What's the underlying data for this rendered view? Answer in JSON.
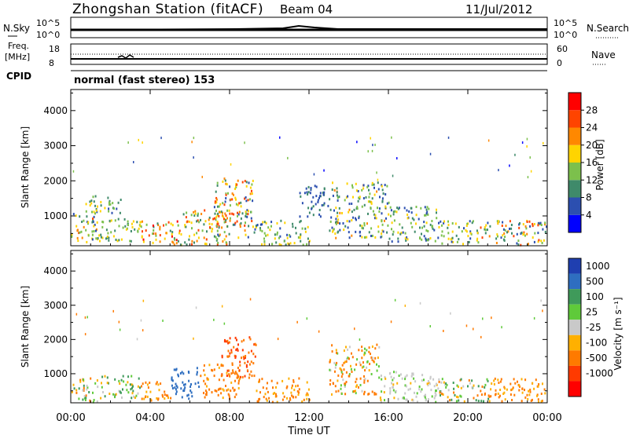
{
  "header": {
    "station": "Zhongshan Station (fitACF)",
    "beam": "Beam 04",
    "date": "11/Jul/2012"
  },
  "strip_labels": {
    "nsky": "N.Sky",
    "freq_line1": "Freq.",
    "freq_line2": "[MHz]",
    "cpid": "CPID",
    "nsearch": "N.Search",
    "nave": "Nave",
    "nsky_ticks": [
      "10^5",
      "10^0"
    ],
    "freq_ticks": [
      "18",
      "8"
    ],
    "nave_ticks": [
      "60",
      "0"
    ],
    "cpid_text": "normal (fast stereo) 153"
  },
  "chart_data": {
    "type": "heatmap",
    "x_ticks": [
      "00:00",
      "04:00",
      "08:00",
      "12:00",
      "16:00",
      "20:00",
      "00:00"
    ],
    "xlabel": "Time UT",
    "panels": [
      {
        "name": "power",
        "ylabel": "Slant Range [km]",
        "y_ticks": [
          1000,
          2000,
          3000,
          4000
        ],
        "ylim": [
          150,
          4600
        ],
        "colorbar_label": "Power [dB]",
        "colorbar_ticks": [
          "4",
          "8",
          "12",
          "16",
          "20",
          "24",
          "28"
        ],
        "colorbar_colors": [
          "#0000ff",
          "#2c4fb0",
          "#3f8a6a",
          "#7cc04c",
          "#ffd400",
          "#ff8800",
          "#ff4400",
          "#ff0000"
        ],
        "scatter_regions": [
          {
            "t": [
              0.0,
              1.3
            ],
            "r": [
              200,
              1150
            ],
            "v": [
              4,
              26
            ]
          },
          {
            "t": [
              0.5,
              2.5
            ],
            "r": [
              1100,
              1600
            ],
            "v": [
              6,
              18
            ]
          },
          {
            "t": [
              1.3,
              3.5
            ],
            "r": [
              300,
              1000
            ],
            "v": [
              8,
              20
            ]
          },
          {
            "t": [
              3.5,
              5.5
            ],
            "r": [
              200,
              900
            ],
            "v": [
              10,
              30
            ]
          },
          {
            "t": [
              5.5,
              8.0
            ],
            "r": [
              200,
              1200
            ],
            "v": [
              8,
              28
            ]
          },
          {
            "t": [
              7.2,
              9.2
            ],
            "r": [
              400,
              2100
            ],
            "v": [
              6,
              28
            ]
          },
          {
            "t": [
              9.2,
              12.0
            ],
            "r": [
              200,
              900
            ],
            "v": [
              6,
              20
            ]
          },
          {
            "t": [
              11.5,
              13.0
            ],
            "r": [
              1000,
              1900
            ],
            "v": [
              4,
              10
            ]
          },
          {
            "t": [
              13.0,
              16.0
            ],
            "r": [
              400,
              2000
            ],
            "v": [
              4,
              22
            ]
          },
          {
            "t": [
              16.0,
              18.5
            ],
            "r": [
              300,
              1300
            ],
            "v": [
              4,
              18
            ]
          },
          {
            "t": [
              18.5,
              20.5
            ],
            "r": [
              200,
              900
            ],
            "v": [
              6,
              20
            ]
          },
          {
            "t": [
              20.5,
              24.0
            ],
            "r": [
              200,
              900
            ],
            "v": [
              4,
              28
            ]
          }
        ]
      },
      {
        "name": "velocity",
        "ylabel": "Slant Range [km]",
        "y_ticks": [
          1000,
          2000,
          3000,
          4000
        ],
        "ylim": [
          150,
          4600
        ],
        "colorbar_label": "Velocity [m s⁻¹]",
        "colorbar_ticks": [
          "1000",
          "500",
          "100",
          "25",
          "-25",
          "-100",
          "-500",
          "-1000"
        ],
        "colorbar_colors": [
          "#1f3fb0",
          "#2e6ec0",
          "#3f9a5a",
          "#5fca3a",
          "#c9c9c9",
          "#ffb000",
          "#ff7a00",
          "#ff3a00",
          "#ff0000"
        ],
        "scatter_regions": [
          {
            "t": [
              0.0,
              1.5
            ],
            "r": [
              200,
              900
            ],
            "v": [
              -200,
              200
            ]
          },
          {
            "t": [
              1.5,
              3.5
            ],
            "r": [
              300,
              1000
            ],
            "v": [
              -100,
              300
            ]
          },
          {
            "t": [
              3.5,
              5.0
            ],
            "r": [
              200,
              800
            ],
            "v": [
              -300,
              -50
            ]
          },
          {
            "t": [
              5.0,
              6.5
            ],
            "r": [
              300,
              1200
            ],
            "v": [
              500,
              1000
            ]
          },
          {
            "t": [
              6.5,
              8.5
            ],
            "r": [
              300,
              1300
            ],
            "v": [
              -250,
              -60
            ]
          },
          {
            "t": [
              7.5,
              9.3
            ],
            "r": [
              900,
              2100
            ],
            "v": [
              -800,
              -200
            ]
          },
          {
            "t": [
              9.3,
              12.0
            ],
            "r": [
              200,
              900
            ],
            "v": [
              -200,
              -40
            ]
          },
          {
            "t": [
              13.0,
              15.5
            ],
            "r": [
              400,
              1900
            ],
            "v": [
              -300,
              100
            ]
          },
          {
            "t": [
              15.5,
              18.5
            ],
            "r": [
              200,
              1100
            ],
            "v": [
              -40,
              50
            ]
          },
          {
            "t": [
              18.5,
              21.0
            ],
            "r": [
              200,
              900
            ],
            "v": [
              -200,
              200
            ]
          },
          {
            "t": [
              21.0,
              24.0
            ],
            "r": [
              200,
              900
            ],
            "v": [
              -200,
              -40
            ]
          }
        ]
      }
    ]
  }
}
